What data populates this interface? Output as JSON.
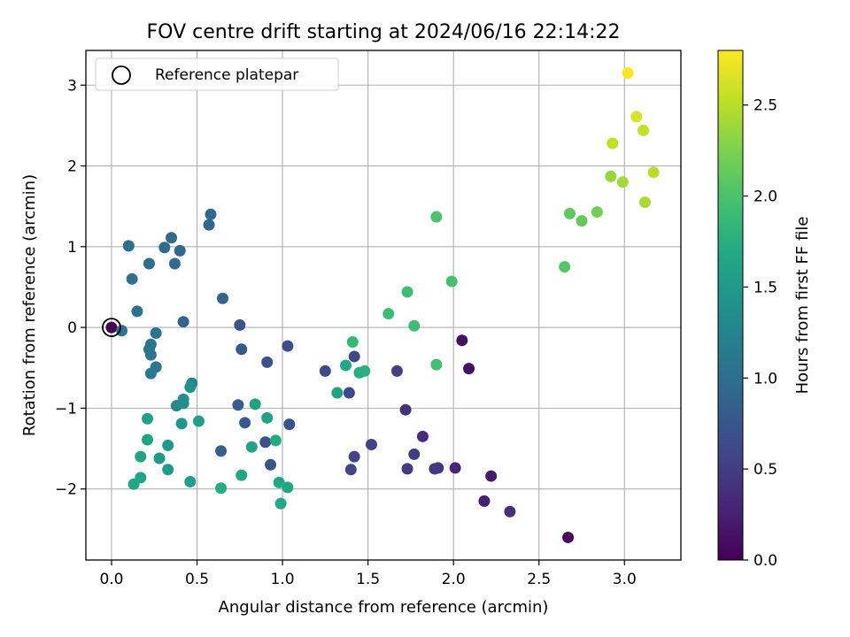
{
  "chart_data": {
    "type": "scatter",
    "title": "FOV centre drift starting at 2024/06/16 22:14:22",
    "xlabel": "Angular distance from reference (arcmin)",
    "ylabel": "Rotation from reference (arcmin)",
    "xlim": [
      -0.15,
      3.33
    ],
    "ylim": [
      -2.88,
      3.43
    ],
    "xticks": [
      0.0,
      0.5,
      1.0,
      1.5,
      2.0,
      2.5,
      3.0
    ],
    "xtick_labels": [
      "0.0",
      "0.5",
      "1.0",
      "1.5",
      "2.0",
      "2.5",
      "3.0"
    ],
    "yticks": [
      -2,
      -1,
      0,
      1,
      2,
      3
    ],
    "ytick_labels": [
      "−2",
      "−1",
      "0",
      "1",
      "2",
      "3"
    ],
    "grid": true,
    "legend": {
      "placement": "top-left",
      "entries": [
        {
          "label": "Reference platepar",
          "marker": "open-circle"
        }
      ]
    },
    "reference_point": {
      "x": 0.0,
      "y": 0.0
    },
    "colorbar": {
      "label": "Hours from first FF file",
      "colormap": "viridis",
      "range": [
        0.0,
        2.8
      ],
      "ticks": [
        0.0,
        0.5,
        1.0,
        1.5,
        2.0,
        2.5
      ],
      "tick_labels": [
        "0.0",
        "0.5",
        "1.0",
        "1.5",
        "2.0",
        "2.5"
      ]
    },
    "points": [
      {
        "x": 0.0,
        "y": 0.0,
        "c": 0.0
      },
      {
        "x": 2.67,
        "y": -2.6,
        "c": 0.05
      },
      {
        "x": 2.05,
        "y": -0.16,
        "c": 0.1
      },
      {
        "x": 2.09,
        "y": -0.51,
        "c": 0.12
      },
      {
        "x": 2.22,
        "y": -1.84,
        "c": 0.2
      },
      {
        "x": 2.18,
        "y": -2.15,
        "c": 0.25
      },
      {
        "x": 2.01,
        "y": -1.74,
        "c": 0.3
      },
      {
        "x": 1.82,
        "y": -1.35,
        "c": 0.35
      },
      {
        "x": 2.33,
        "y": -2.28,
        "c": 0.38
      },
      {
        "x": 1.72,
        "y": -1.02,
        "c": 0.4
      },
      {
        "x": 1.91,
        "y": -1.74,
        "c": 0.43
      },
      {
        "x": 1.89,
        "y": -1.75,
        "c": 0.45
      },
      {
        "x": 1.73,
        "y": -1.75,
        "c": 0.48
      },
      {
        "x": 1.77,
        "y": -1.57,
        "c": 0.5
      },
      {
        "x": 1.67,
        "y": -0.54,
        "c": 0.52
      },
      {
        "x": 1.52,
        "y": -1.45,
        "c": 0.55
      },
      {
        "x": 1.42,
        "y": -1.6,
        "c": 0.57
      },
      {
        "x": 1.4,
        "y": -1.76,
        "c": 0.58
      },
      {
        "x": 1.39,
        "y": -0.81,
        "c": 0.6
      },
      {
        "x": 1.42,
        "y": -0.36,
        "c": 0.62
      },
      {
        "x": 1.25,
        "y": -0.54,
        "c": 0.63
      },
      {
        "x": 1.03,
        "y": -0.23,
        "c": 0.65
      },
      {
        "x": 0.91,
        "y": -0.43,
        "c": 0.68
      },
      {
        "x": 1.04,
        "y": -1.2,
        "c": 0.7
      },
      {
        "x": 0.9,
        "y": -1.42,
        "c": 0.72
      },
      {
        "x": 0.93,
        "y": -1.7,
        "c": 0.73
      },
      {
        "x": 0.75,
        "y": 0.03,
        "c": 0.75
      },
      {
        "x": 0.76,
        "y": -0.27,
        "c": 0.78
      },
      {
        "x": 0.78,
        "y": -1.18,
        "c": 0.8
      },
      {
        "x": 0.74,
        "y": -0.96,
        "c": 0.82
      },
      {
        "x": 0.64,
        "y": -1.53,
        "c": 0.85
      },
      {
        "x": 0.65,
        "y": 0.36,
        "c": 0.87
      },
      {
        "x": 0.42,
        "y": 0.07,
        "c": 0.9
      },
      {
        "x": 0.57,
        "y": 1.27,
        "c": 0.92
      },
      {
        "x": 0.58,
        "y": 1.4,
        "c": 0.94
      },
      {
        "x": 0.4,
        "y": 0.95,
        "c": 0.95
      },
      {
        "x": 0.35,
        "y": 1.11,
        "c": 0.96
      },
      {
        "x": 0.37,
        "y": 0.79,
        "c": 0.97
      },
      {
        "x": 0.31,
        "y": 0.99,
        "c": 0.98
      },
      {
        "x": 0.22,
        "y": 0.79,
        "c": 1.0
      },
      {
        "x": 0.1,
        "y": 1.01,
        "c": 1.02
      },
      {
        "x": 0.12,
        "y": 0.6,
        "c": 1.03
      },
      {
        "x": 0.15,
        "y": 0.2,
        "c": 1.05
      },
      {
        "x": 0.06,
        "y": -0.04,
        "c": 1.05
      },
      {
        "x": 0.26,
        "y": -0.07,
        "c": 1.07
      },
      {
        "x": 0.23,
        "y": -0.21,
        "c": 1.08
      },
      {
        "x": 0.22,
        "y": -0.27,
        "c": 1.09
      },
      {
        "x": 0.23,
        "y": -0.34,
        "c": 1.1
      },
      {
        "x": 0.26,
        "y": -0.49,
        "c": 1.11
      },
      {
        "x": 0.23,
        "y": -0.57,
        "c": 1.12
      },
      {
        "x": 0.47,
        "y": -0.69,
        "c": 1.3
      },
      {
        "x": 0.38,
        "y": -0.97,
        "c": 1.32
      },
      {
        "x": 0.42,
        "y": -0.94,
        "c": 1.35
      },
      {
        "x": 0.42,
        "y": -0.89,
        "c": 1.38
      },
      {
        "x": 0.46,
        "y": -0.74,
        "c": 1.42
      },
      {
        "x": 0.41,
        "y": -1.19,
        "c": 1.45
      },
      {
        "x": 0.33,
        "y": -1.46,
        "c": 1.48
      },
      {
        "x": 0.28,
        "y": -1.62,
        "c": 1.5
      },
      {
        "x": 0.33,
        "y": -1.76,
        "c": 1.52
      },
      {
        "x": 0.46,
        "y": -1.91,
        "c": 1.55
      },
      {
        "x": 0.51,
        "y": -1.16,
        "c": 1.57
      },
      {
        "x": 0.84,
        "y": -0.95,
        "c": 1.6
      },
      {
        "x": 0.91,
        "y": -1.12,
        "c": 1.6
      },
      {
        "x": 0.82,
        "y": -1.48,
        "c": 1.62
      },
      {
        "x": 0.76,
        "y": -1.83,
        "c": 1.64
      },
      {
        "x": 0.98,
        "y": -1.92,
        "c": 1.66
      },
      {
        "x": 1.03,
        "y": -1.98,
        "c": 1.66
      },
      {
        "x": 0.99,
        "y": -2.18,
        "c": 1.68
      },
      {
        "x": 0.96,
        "y": -1.4,
        "c": 1.7
      },
      {
        "x": 0.64,
        "y": -1.99,
        "c": 1.72
      },
      {
        "x": 0.21,
        "y": -1.13,
        "c": 1.6
      },
      {
        "x": 0.21,
        "y": -1.39,
        "c": 1.62
      },
      {
        "x": 0.17,
        "y": -1.6,
        "c": 1.62
      },
      {
        "x": 0.17,
        "y": -1.86,
        "c": 1.64
      },
      {
        "x": 0.13,
        "y": -1.94,
        "c": 1.65
      },
      {
        "x": 1.32,
        "y": -0.81,
        "c": 1.6
      },
      {
        "x": 1.37,
        "y": -0.47,
        "c": 1.68
      },
      {
        "x": 1.45,
        "y": -0.56,
        "c": 1.72
      },
      {
        "x": 1.48,
        "y": -0.54,
        "c": 1.75
      },
      {
        "x": 1.41,
        "y": -0.18,
        "c": 1.85
      },
      {
        "x": 1.62,
        "y": 0.17,
        "c": 1.9
      },
      {
        "x": 1.73,
        "y": 0.44,
        "c": 1.92
      },
      {
        "x": 1.77,
        "y": 0.02,
        "c": 1.93
      },
      {
        "x": 1.9,
        "y": -0.46,
        "c": 1.95
      },
      {
        "x": 1.99,
        "y": 0.57,
        "c": 1.98
      },
      {
        "x": 1.9,
        "y": 1.37,
        "c": 2.0
      },
      {
        "x": 2.65,
        "y": 0.75,
        "c": 2.05
      },
      {
        "x": 2.68,
        "y": 1.41,
        "c": 2.1
      },
      {
        "x": 2.75,
        "y": 1.32,
        "c": 2.12
      },
      {
        "x": 2.84,
        "y": 1.43,
        "c": 2.2
      },
      {
        "x": 2.92,
        "y": 1.87,
        "c": 2.35
      },
      {
        "x": 2.99,
        "y": 1.8,
        "c": 2.4
      },
      {
        "x": 3.12,
        "y": 1.55,
        "c": 2.43
      },
      {
        "x": 3.17,
        "y": 1.92,
        "c": 2.5
      },
      {
        "x": 2.93,
        "y": 2.28,
        "c": 2.52
      },
      {
        "x": 3.11,
        "y": 2.44,
        "c": 2.55
      },
      {
        "x": 3.07,
        "y": 2.61,
        "c": 2.65
      },
      {
        "x": 3.02,
        "y": 3.15,
        "c": 2.78
      }
    ]
  }
}
